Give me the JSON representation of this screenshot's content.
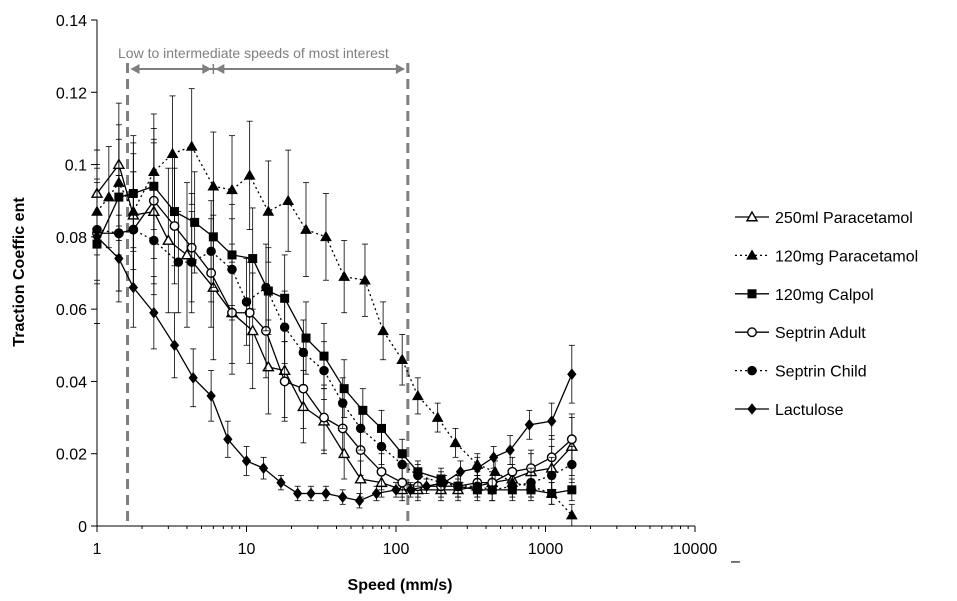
{
  "chart_data": {
    "type": "line",
    "title": "",
    "xlabel": "Speed (mm/s)",
    "ylabel": "Traction Coeffic ent",
    "x_scale": "log",
    "xlim": [
      1,
      10000
    ],
    "ylim": [
      0,
      0.14
    ],
    "x_ticks": [
      1,
      10,
      100,
      1000,
      10000
    ],
    "x_tick_labels": [
      "1",
      "10",
      "100",
      "1000",
      "10000"
    ],
    "y_ticks": [
      0,
      0.02,
      0.04,
      0.06,
      0.08,
      0.1,
      0.12,
      0.14
    ],
    "y_tick_labels": [
      "0",
      "0.02",
      "0.04",
      "0.06",
      "0.08",
      "0.1",
      "0.12",
      "0.14"
    ],
    "grid": false,
    "legend_position": "right",
    "annotation": {
      "text": "Low to intermediate speeds of most interest",
      "region_low_x": 1.6,
      "region_mid_x": 6,
      "region_high_x": 120
    },
    "x": [
      1,
      1.2,
      1.4,
      1.75,
      2,
      2.4,
      3,
      3.5,
      4.3,
      5.5,
      6,
      7.5,
      8,
      9,
      10.5,
      12,
      14,
      17,
      19,
      23,
      25,
      29,
      35,
      40,
      48,
      56,
      65,
      80,
      90,
      110,
      125,
      140,
      160,
      200,
      250,
      300,
      350,
      440,
      500,
      600,
      700,
      800,
      1000,
      1100,
      1500
    ],
    "series": [
      {
        "name": "250ml Paracetamol",
        "marker": "triangle-open",
        "line": "solid",
        "x": [
          1,
          1.4,
          1.75,
          2.4,
          3,
          4,
          6,
          8,
          11,
          14,
          18,
          24,
          33,
          45,
          58,
          80,
          110,
          140,
          200,
          260,
          350,
          440,
          600,
          800,
          1100,
          1500
        ],
        "values": [
          0.092,
          0.1,
          0.086,
          0.087,
          0.079,
          0.075,
          0.066,
          0.059,
          0.054,
          0.044,
          0.043,
          0.033,
          0.029,
          0.02,
          0.013,
          0.012,
          0.01,
          0.01,
          0.01,
          0.01,
          0.011,
          0.012,
          0.013,
          0.015,
          0.016,
          0.022
        ],
        "errors": [
          0.012,
          0.017,
          0.02,
          0.02,
          0.02,
          0.02,
          0.02,
          0.017,
          0.016,
          0.013,
          0.013,
          0.01,
          0.009,
          0.007,
          0.005,
          0.004,
          0.003,
          0.003,
          0.003,
          0.003,
          0.003,
          0.003,
          0.004,
          0.005,
          0.006,
          0.008
        ]
      },
      {
        "name": "120mg Paracetamol",
        "marker": "triangle-filled",
        "line": "dotted",
        "x": [
          1,
          1.2,
          1.4,
          1.75,
          2.4,
          3.2,
          4.3,
          6,
          8,
          10.5,
          14,
          19,
          25,
          34,
          45,
          62,
          82,
          110,
          140,
          190,
          250,
          350,
          460,
          600,
          800,
          1100,
          1500
        ],
        "values": [
          0.087,
          0.091,
          0.095,
          0.087,
          0.098,
          0.103,
          0.105,
          0.094,
          0.093,
          0.097,
          0.087,
          0.09,
          0.082,
          0.08,
          0.069,
          0.068,
          0.054,
          0.046,
          0.036,
          0.03,
          0.023,
          0.017,
          0.015,
          0.012,
          0.011,
          0.009,
          0.003
        ],
        "errors": [
          0.012,
          0.014,
          0.016,
          0.016,
          0.016,
          0.016,
          0.016,
          0.015,
          0.015,
          0.015,
          0.014,
          0.014,
          0.013,
          0.012,
          0.01,
          0.01,
          0.008,
          0.007,
          0.005,
          0.004,
          0.004,
          0.003,
          0.003,
          0.003,
          0.003,
          0.003,
          0.003
        ]
      },
      {
        "name": "120mg Calpol",
        "marker": "square-filled",
        "line": "solid",
        "x": [
          1,
          1.4,
          1.75,
          2.4,
          3.3,
          4.5,
          6,
          8,
          11,
          14,
          18,
          25,
          33,
          45,
          60,
          80,
          110,
          140,
          200,
          260,
          350,
          440,
          600,
          800,
          1100,
          1500
        ],
        "values": [
          0.078,
          0.091,
          0.092,
          0.094,
          0.087,
          0.084,
          0.08,
          0.075,
          0.074,
          0.065,
          0.063,
          0.052,
          0.047,
          0.038,
          0.032,
          0.027,
          0.02,
          0.015,
          0.013,
          0.011,
          0.01,
          0.01,
          0.01,
          0.01,
          0.009,
          0.01
        ],
        "errors": [
          0.022,
          0.016,
          0.016,
          0.016,
          0.015,
          0.014,
          0.014,
          0.014,
          0.014,
          0.012,
          0.012,
          0.01,
          0.009,
          0.008,
          0.006,
          0.005,
          0.004,
          0.003,
          0.003,
          0.003,
          0.003,
          0.003,
          0.003,
          0.003,
          0.003,
          0.003
        ]
      },
      {
        "name": "Septrin Adult",
        "marker": "circle-open",
        "line": "solid",
        "x": [
          1,
          1.4,
          1.75,
          2.4,
          3.3,
          4.3,
          5.8,
          8,
          10.5,
          13.5,
          18,
          24,
          33,
          44,
          58,
          80,
          110,
          140,
          200,
          260,
          350,
          440,
          600,
          800,
          1100,
          1500
        ],
        "values": [
          0.081,
          0.081,
          0.082,
          0.09,
          0.083,
          0.077,
          0.07,
          0.059,
          0.059,
          0.054,
          0.04,
          0.038,
          0.03,
          0.027,
          0.021,
          0.015,
          0.012,
          0.011,
          0.011,
          0.011,
          0.012,
          0.012,
          0.015,
          0.016,
          0.019,
          0.024
        ],
        "errors": [
          0.014,
          0.016,
          0.016,
          0.016,
          0.016,
          0.015,
          0.015,
          0.014,
          0.014,
          0.013,
          0.011,
          0.011,
          0.009,
          0.008,
          0.007,
          0.005,
          0.004,
          0.003,
          0.003,
          0.003,
          0.003,
          0.003,
          0.004,
          0.005,
          0.006,
          0.007
        ]
      },
      {
        "name": "Septrin Child",
        "marker": "circle-filled",
        "line": "dotted",
        "x": [
          1,
          1.4,
          1.75,
          2.4,
          3.5,
          4.3,
          5.8,
          8,
          10,
          13.5,
          18,
          24,
          33,
          44,
          58,
          80,
          110,
          140,
          200,
          260,
          350,
          440,
          600,
          800,
          1100,
          1500
        ],
        "values": [
          0.082,
          0.081,
          0.082,
          0.079,
          0.073,
          0.073,
          0.076,
          0.071,
          0.062,
          0.066,
          0.055,
          0.048,
          0.043,
          0.034,
          0.027,
          0.022,
          0.017,
          0.014,
          0.012,
          0.011,
          0.011,
          0.01,
          0.011,
          0.012,
          0.014,
          0.017
        ],
        "errors": [
          0.014,
          0.016,
          0.016,
          0.015,
          0.014,
          0.014,
          0.014,
          0.014,
          0.012,
          0.012,
          0.01,
          0.009,
          0.008,
          0.007,
          0.006,
          0.005,
          0.004,
          0.003,
          0.003,
          0.003,
          0.003,
          0.003,
          0.003,
          0.004,
          0.005,
          0.005
        ]
      },
      {
        "name": "Lactulose",
        "marker": "diamond-filled",
        "line": "solid",
        "x": [
          1,
          1.4,
          1.75,
          2.4,
          3.3,
          4.4,
          5.8,
          7.5,
          10,
          13,
          17,
          22,
          27,
          34,
          44,
          57,
          74,
          100,
          125,
          160,
          210,
          270,
          350,
          450,
          580,
          780,
          1100,
          1500
        ],
        "values": [
          0.08,
          0.074,
          0.066,
          0.059,
          0.05,
          0.041,
          0.036,
          0.024,
          0.018,
          0.016,
          0.012,
          0.009,
          0.009,
          0.009,
          0.008,
          0.007,
          0.009,
          0.01,
          0.01,
          0.011,
          0.012,
          0.015,
          0.016,
          0.019,
          0.021,
          0.028,
          0.029,
          0.042
        ],
        "errors": [
          0.024,
          0.012,
          0.011,
          0.01,
          0.009,
          0.008,
          0.007,
          0.005,
          0.004,
          0.003,
          0.002,
          0.002,
          0.002,
          0.002,
          0.002,
          0.002,
          0.002,
          0.002,
          0.002,
          0.002,
          0.002,
          0.003,
          0.003,
          0.003,
          0.004,
          0.004,
          0.005,
          0.008
        ]
      }
    ]
  },
  "x_axis_stub_mark": "–"
}
